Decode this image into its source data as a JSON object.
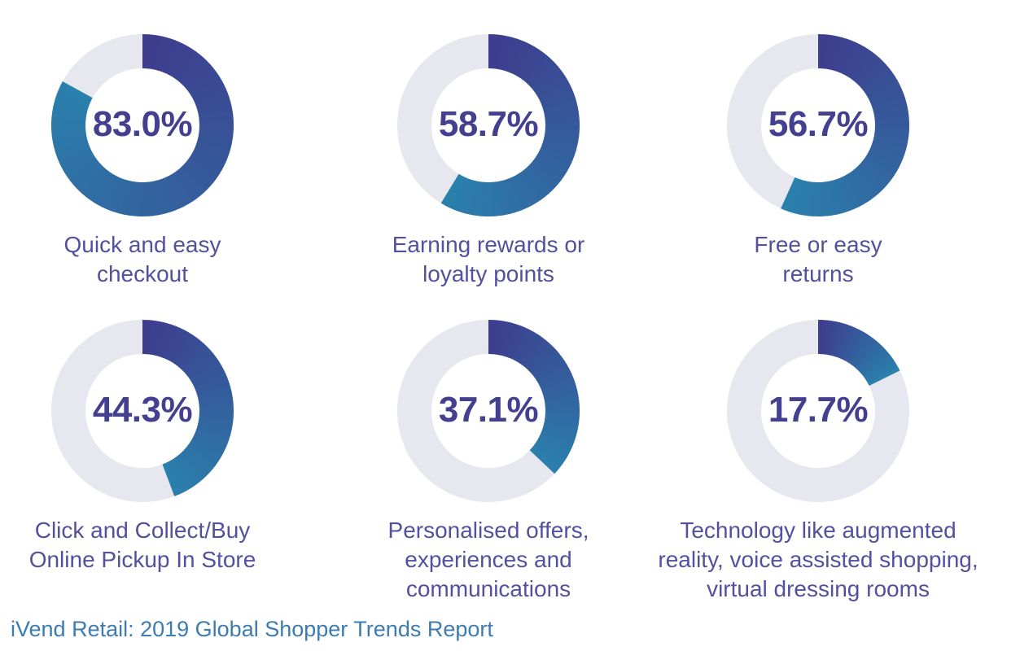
{
  "chart_data": {
    "type": "pie",
    "variant": "donut",
    "start_angle_deg": -90,
    "direction": "clockwise",
    "items": [
      {
        "label": "Quick and easy checkout",
        "value": 83.0,
        "value_label": "83.0%"
      },
      {
        "label": "Earning rewards or loyalty points",
        "value": 58.7,
        "value_label": "58.7%"
      },
      {
        "label": "Free or easy returns",
        "value": 56.7,
        "value_label": "56.7%"
      },
      {
        "label": "Click and Collect/Buy Online Pickup In Store",
        "value": 44.3,
        "value_label": "44.3%"
      },
      {
        "label": "Personalised offers, experiences and communications",
        "value": 37.1,
        "value_label": "37.1%"
      },
      {
        "label": "Technology like augmented reality, voice assisted shopping, virtual dressing rooms",
        "value": 17.7,
        "value_label": "17.7%"
      }
    ],
    "source": "iVend Retail: 2019 Global Shopper Trends Report",
    "colors": {
      "arc_gradient_start": "#3E3C8E",
      "arc_gradient_end": "#2A80AC",
      "track": "#E7E7EF",
      "value_text": "#453F90",
      "label_text": "#54509E",
      "source_text": "#3C7CB1",
      "background": "#FFFFFF"
    }
  }
}
